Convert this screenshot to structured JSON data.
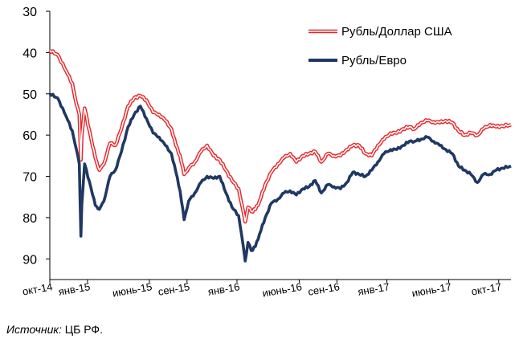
{
  "chart_data": {
    "type": "line",
    "y_inverted": true,
    "ylim": [
      30,
      95
    ],
    "yticks": [
      30,
      40,
      50,
      60,
      70,
      80,
      90
    ],
    "x_range": [
      "2014-10-01",
      "2017-10-31"
    ],
    "x_ticks": [
      {
        "date": "2014-10-01",
        "label": "окт-14"
      },
      {
        "date": "2015-01-01",
        "label": "янв-15"
      },
      {
        "date": "2015-06-01",
        "label": "июнь-15"
      },
      {
        "date": "2015-09-01",
        "label": "сен-15"
      },
      {
        "date": "2016-01-01",
        "label": "янв-16"
      },
      {
        "date": "2016-06-01",
        "label": "июнь-16"
      },
      {
        "date": "2016-09-01",
        "label": "сен-16"
      },
      {
        "date": "2017-01-01",
        "label": "янв-17"
      },
      {
        "date": "2017-06-01",
        "label": "июнь-17"
      },
      {
        "date": "2017-10-01",
        "label": "окт-17"
      }
    ],
    "legend_position": "top-right",
    "series": [
      {
        "name": "Рубль/Доллар США",
        "color": "#e8262a",
        "style": "double-outline",
        "points": [
          [
            "2014-10-01",
            39.5
          ],
          [
            "2014-10-20",
            40.5
          ],
          [
            "2014-11-10",
            44.5
          ],
          [
            "2014-11-25",
            47.5
          ],
          [
            "2014-12-05",
            52.5
          ],
          [
            "2014-12-12",
            55.0
          ],
          [
            "2014-12-16",
            66.0
          ],
          [
            "2014-12-18",
            60.0
          ],
          [
            "2014-12-25",
            53.5
          ],
          [
            "2015-01-10",
            61.0
          ],
          [
            "2015-01-20",
            65.5
          ],
          [
            "2015-01-30",
            68.5
          ],
          [
            "2015-02-10",
            67.0
          ],
          [
            "2015-02-25",
            62.0
          ],
          [
            "2015-03-10",
            62.5
          ],
          [
            "2015-03-25",
            58.5
          ],
          [
            "2015-04-10",
            53.0
          ],
          [
            "2015-04-25",
            51.0
          ],
          [
            "2015-05-10",
            50.5
          ],
          [
            "2015-05-25",
            51.5
          ],
          [
            "2015-06-10",
            54.5
          ],
          [
            "2015-06-25",
            55.0
          ],
          [
            "2015-07-10",
            56.5
          ],
          [
            "2015-07-25",
            58.5
          ],
          [
            "2015-08-05",
            62.5
          ],
          [
            "2015-08-15",
            65.0
          ],
          [
            "2015-08-25",
            69.5
          ],
          [
            "2015-09-05",
            68.0
          ],
          [
            "2015-09-20",
            66.5
          ],
          [
            "2015-10-05",
            64.0
          ],
          [
            "2015-10-20",
            62.5
          ],
          [
            "2015-11-05",
            65.0
          ],
          [
            "2015-11-20",
            66.0
          ],
          [
            "2015-12-05",
            68.5
          ],
          [
            "2015-12-20",
            71.0
          ],
          [
            "2016-01-05",
            73.0
          ],
          [
            "2016-01-12",
            76.5
          ],
          [
            "2016-01-21",
            81.0
          ],
          [
            "2016-01-28",
            77.5
          ],
          [
            "2016-02-05",
            78.5
          ],
          [
            "2016-02-15",
            78.0
          ],
          [
            "2016-02-25",
            76.0
          ],
          [
            "2016-03-10",
            72.0
          ],
          [
            "2016-03-25",
            69.0
          ],
          [
            "2016-04-10",
            67.0
          ],
          [
            "2016-04-25",
            65.5
          ],
          [
            "2016-05-10",
            64.5
          ],
          [
            "2016-05-25",
            66.5
          ],
          [
            "2016-06-10",
            65.0
          ],
          [
            "2016-06-25",
            64.5
          ],
          [
            "2016-07-10",
            64.0
          ],
          [
            "2016-07-25",
            66.5
          ],
          [
            "2016-08-10",
            64.5
          ],
          [
            "2016-08-25",
            65.0
          ],
          [
            "2016-09-10",
            65.0
          ],
          [
            "2016-09-25",
            63.5
          ],
          [
            "2016-10-10",
            62.5
          ],
          [
            "2016-10-25",
            62.5
          ],
          [
            "2016-11-10",
            64.5
          ],
          [
            "2016-11-25",
            65.0
          ],
          [
            "2016-12-10",
            62.5
          ],
          [
            "2016-12-25",
            61.0
          ],
          [
            "2017-01-10",
            59.5
          ],
          [
            "2017-01-25",
            59.5
          ],
          [
            "2017-02-10",
            58.5
          ],
          [
            "2017-02-25",
            58.0
          ],
          [
            "2017-03-10",
            58.5
          ],
          [
            "2017-03-25",
            57.0
          ],
          [
            "2017-04-10",
            56.5
          ],
          [
            "2017-04-25",
            56.8
          ],
          [
            "2017-05-10",
            57.0
          ],
          [
            "2017-05-25",
            56.5
          ],
          [
            "2017-06-10",
            57.0
          ],
          [
            "2017-06-25",
            59.0
          ],
          [
            "2017-07-10",
            60.0
          ],
          [
            "2017-07-25",
            59.5
          ],
          [
            "2017-08-10",
            60.0
          ],
          [
            "2017-08-25",
            58.5
          ],
          [
            "2017-09-10",
            57.5
          ],
          [
            "2017-09-25",
            58.0
          ],
          [
            "2017-10-10",
            57.8
          ],
          [
            "2017-10-31",
            57.5
          ]
        ]
      },
      {
        "name": "Рубль/Евро",
        "color": "#1f3864",
        "style": "thick",
        "points": [
          [
            "2014-10-01",
            50.0
          ],
          [
            "2014-10-20",
            51.0
          ],
          [
            "2014-11-10",
            55.5
          ],
          [
            "2014-11-25",
            59.0
          ],
          [
            "2014-12-05",
            63.5
          ],
          [
            "2014-12-12",
            67.0
          ],
          [
            "2014-12-16",
            84.5
          ],
          [
            "2014-12-18",
            77.0
          ],
          [
            "2014-12-25",
            67.0
          ],
          [
            "2015-01-10",
            73.0
          ],
          [
            "2015-01-20",
            77.0
          ],
          [
            "2015-01-30",
            78.0
          ],
          [
            "2015-02-10",
            76.0
          ],
          [
            "2015-02-25",
            70.0
          ],
          [
            "2015-03-10",
            68.5
          ],
          [
            "2015-03-25",
            64.0
          ],
          [
            "2015-04-10",
            58.0
          ],
          [
            "2015-04-25",
            55.0
          ],
          [
            "2015-05-10",
            53.0
          ],
          [
            "2015-05-25",
            56.0
          ],
          [
            "2015-06-10",
            59.5
          ],
          [
            "2015-06-25",
            60.5
          ],
          [
            "2015-07-10",
            62.5
          ],
          [
            "2015-07-25",
            64.5
          ],
          [
            "2015-08-05",
            69.0
          ],
          [
            "2015-08-15",
            73.5
          ],
          [
            "2015-08-25",
            80.5
          ],
          [
            "2015-09-05",
            76.0
          ],
          [
            "2015-09-20",
            74.0
          ],
          [
            "2015-10-05",
            71.5
          ],
          [
            "2015-10-20",
            70.0
          ],
          [
            "2015-11-05",
            70.5
          ],
          [
            "2015-11-20",
            70.0
          ],
          [
            "2015-12-05",
            74.0
          ],
          [
            "2015-12-20",
            77.5
          ],
          [
            "2016-01-05",
            79.5
          ],
          [
            "2016-01-12",
            84.0
          ],
          [
            "2016-01-21",
            90.5
          ],
          [
            "2016-01-28",
            86.0
          ],
          [
            "2016-02-05",
            88.0
          ],
          [
            "2016-02-15",
            87.0
          ],
          [
            "2016-02-25",
            84.0
          ],
          [
            "2016-03-10",
            80.0
          ],
          [
            "2016-03-25",
            76.5
          ],
          [
            "2016-04-10",
            75.5
          ],
          [
            "2016-04-25",
            74.0
          ],
          [
            "2016-05-10",
            73.5
          ],
          [
            "2016-05-25",
            74.5
          ],
          [
            "2016-06-10",
            73.0
          ],
          [
            "2016-06-25",
            72.5
          ],
          [
            "2016-07-10",
            71.0
          ],
          [
            "2016-07-25",
            74.0
          ],
          [
            "2016-08-10",
            72.0
          ],
          [
            "2016-08-25",
            72.5
          ],
          [
            "2016-09-10",
            73.0
          ],
          [
            "2016-09-25",
            71.5
          ],
          [
            "2016-10-10",
            69.0
          ],
          [
            "2016-10-25",
            69.5
          ],
          [
            "2016-11-10",
            70.0
          ],
          [
            "2016-11-25",
            68.5
          ],
          [
            "2016-12-10",
            66.5
          ],
          [
            "2016-12-25",
            64.5
          ],
          [
            "2017-01-10",
            63.5
          ],
          [
            "2017-01-25",
            63.5
          ],
          [
            "2017-02-10",
            62.5
          ],
          [
            "2017-02-25",
            61.5
          ],
          [
            "2017-03-10",
            61.5
          ],
          [
            "2017-03-25",
            61.0
          ],
          [
            "2017-04-10",
            60.5
          ],
          [
            "2017-04-25",
            61.5
          ],
          [
            "2017-05-10",
            62.5
          ],
          [
            "2017-05-25",
            63.5
          ],
          [
            "2017-06-10",
            64.5
          ],
          [
            "2017-06-25",
            67.5
          ],
          [
            "2017-07-10",
            68.5
          ],
          [
            "2017-07-25",
            69.5
          ],
          [
            "2017-08-10",
            71.5
          ],
          [
            "2017-08-25",
            69.5
          ],
          [
            "2017-09-10",
            69.5
          ],
          [
            "2017-09-25",
            68.5
          ],
          [
            "2017-10-10",
            68.0
          ],
          [
            "2017-10-31",
            67.5
          ]
        ]
      }
    ]
  },
  "source": {
    "label": "Источник:",
    "text": " ЦБ РФ."
  }
}
